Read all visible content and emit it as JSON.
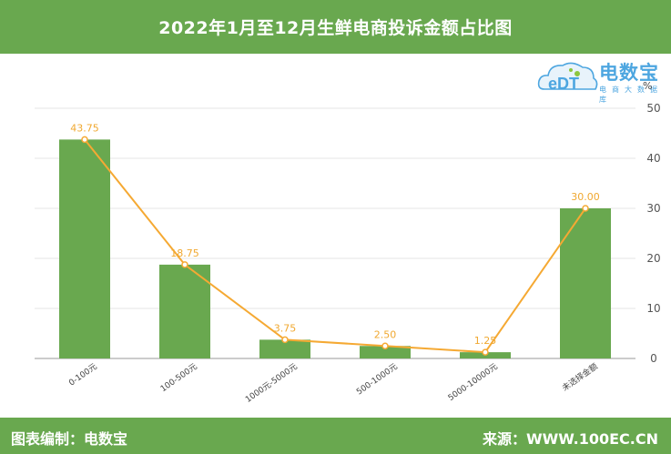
{
  "header": {
    "title": "2022年1月至12月生鲜电商投诉金额占比图"
  },
  "logo": {
    "name": "电数宝",
    "tagline": "电商大数据库",
    "mark_text": "eDT"
  },
  "footer": {
    "left_text": "图表编制：电数宝",
    "right_text": "来源：WWW.100EC.CN"
  },
  "colors": {
    "bar": "#69a84f",
    "line": "#f5a933",
    "band": "#69a84f",
    "logo": "#4da6e0"
  },
  "chart_data": {
    "type": "bar",
    "title": "2022年1月至12月生鲜电商投诉金额占比图",
    "unit_label": "%",
    "categories": [
      "0-100元",
      "100-500元",
      "1000元-5000元",
      "500-1000元",
      "5000-10000元",
      "未选择金额"
    ],
    "series": [
      {
        "type": "bar",
        "values": [
          43.75,
          18.75,
          3.75,
          2.5,
          1.25,
          30.0
        ]
      },
      {
        "type": "line",
        "values": [
          43.75,
          18.75,
          3.75,
          2.5,
          1.25,
          30.0
        ]
      }
    ],
    "data_labels": [
      "43.75",
      "18.75",
      "3.75",
      "2.50",
      "1.25",
      "30.00"
    ],
    "y_ticks": [
      "0",
      "10",
      "20",
      "30",
      "40",
      "50"
    ],
    "y_axis_position": "right",
    "ylim": [
      0,
      50
    ],
    "grid": true
  }
}
